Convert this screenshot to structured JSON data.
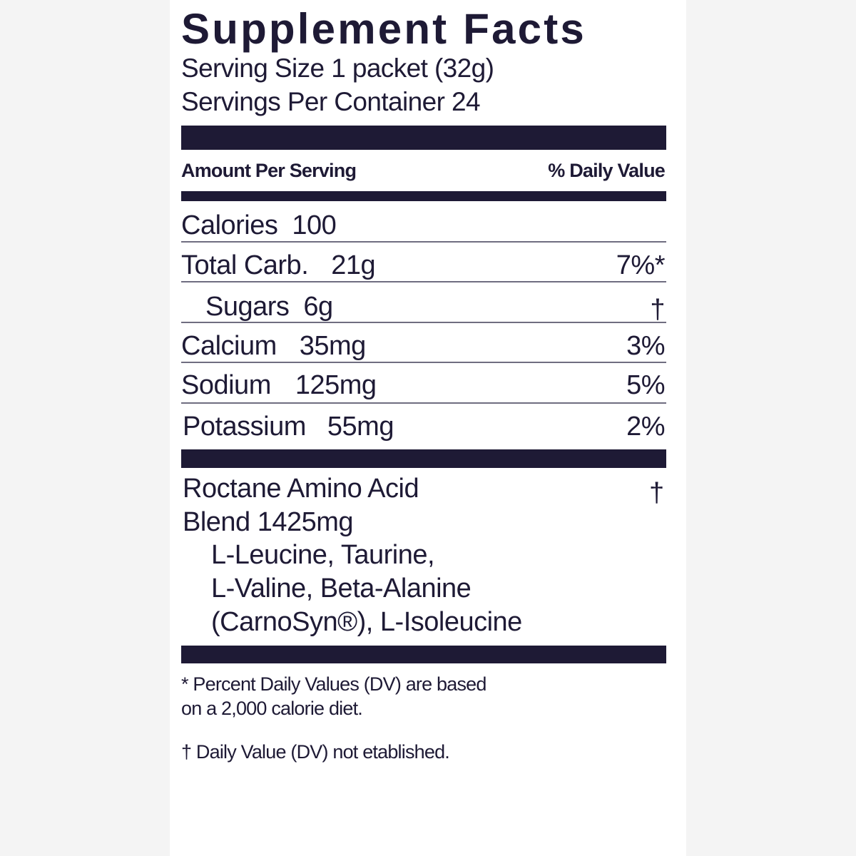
{
  "title": "Supplement Facts",
  "serving_size": "Serving Size 1 packet (32g)",
  "servings_per_container": "Servings Per Container  24",
  "header": {
    "amount_per_serving": "Amount Per Serving",
    "daily_value": "% Daily Value"
  },
  "rows": [
    {
      "name": "Calories",
      "amount": "100",
      "dv": ""
    },
    {
      "name": "Total Carb.",
      "amount": "21g",
      "dv": "7%*"
    },
    {
      "name": "Sugars",
      "amount": "6g",
      "dv": "†"
    },
    {
      "name": "Calcium",
      "amount": "35mg",
      "dv": "3%"
    },
    {
      "name": "Sodium",
      "amount": "125mg",
      "dv": "5%"
    },
    {
      "name": "Potassium",
      "amount": "55mg",
      "dv": "2%"
    }
  ],
  "blend": {
    "name_line1": "Roctane Amino Acid",
    "name_line2": "Blend  1425mg",
    "dv": "†",
    "ingredients": [
      "L-Leucine, Taurine,",
      "L-Valine, Beta-Alanine",
      "(CarnoSyn®), L-Isoleucine"
    ]
  },
  "footnotes": {
    "percent_dv_line1": "* Percent Daily Values (DV) are based",
    "percent_dv_line2": "on a 2,000 calorie diet.",
    "dagger": "† Daily Value (DV) not etablished."
  },
  "colors": {
    "ink": "#1e1a35",
    "background": "#f4f4f4",
    "label": "#ffffff"
  }
}
